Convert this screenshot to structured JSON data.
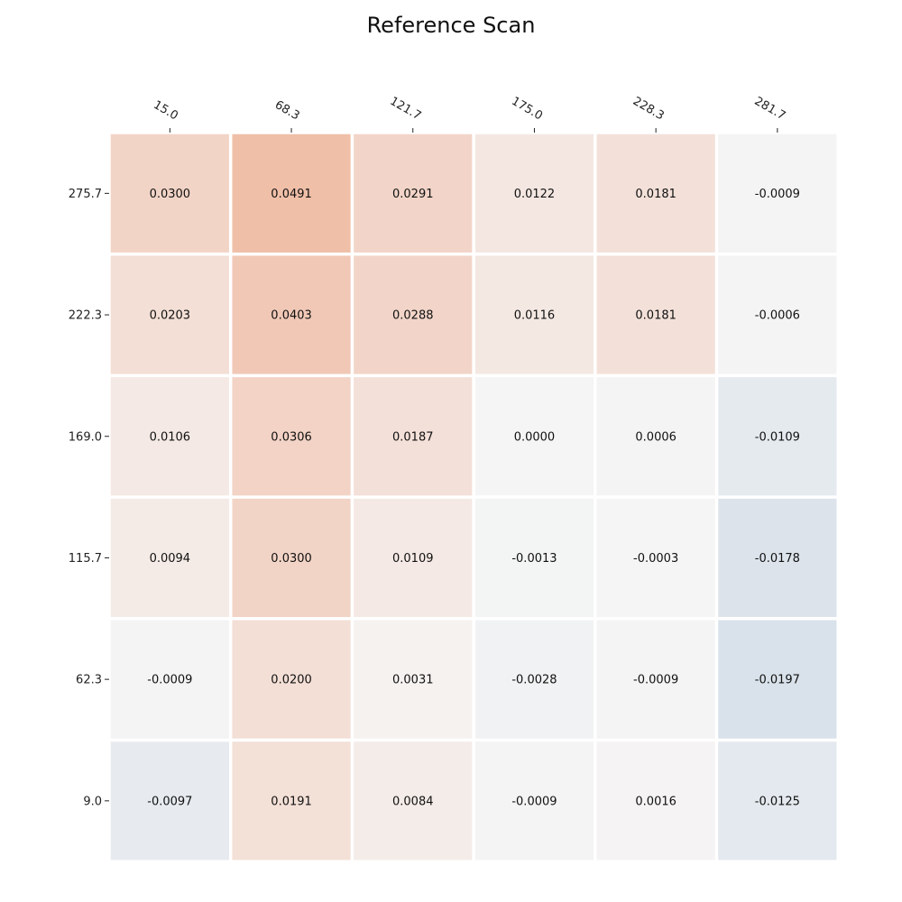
{
  "chart_data": {
    "type": "heatmap",
    "title": "Reference Scan",
    "xlabel": "",
    "ylabel": "",
    "x": [
      "15.0",
      "68.3",
      "121.7",
      "175.0",
      "228.3",
      "281.7"
    ],
    "y": [
      "275.7",
      "222.3",
      "169.0",
      "115.7",
      "62.3",
      "9.0"
    ],
    "x_axis_position": "top",
    "grid": false,
    "colormap": {
      "negative": "#4a7fb0",
      "neutral": "#f5f5f5",
      "positive": "#e8703a",
      "vmin": -0.12,
      "vmax": 0.12
    },
    "values": [
      [
        0.03,
        0.0491,
        0.0291,
        0.0122,
        0.0181,
        -0.0009
      ],
      [
        0.0203,
        0.0403,
        0.0288,
        0.0116,
        0.0181,
        -0.0006
      ],
      [
        0.0106,
        0.0306,
        0.0187,
        0.0,
        0.0006,
        -0.0109
      ],
      [
        0.0094,
        0.03,
        0.0109,
        -0.0013,
        -0.0003,
        -0.0178
      ],
      [
        -0.0009,
        0.02,
        0.0031,
        -0.0028,
        -0.0009,
        -0.0197
      ],
      [
        -0.0097,
        0.0191,
        0.0084,
        -0.0009,
        0.0016,
        -0.0125
      ]
    ],
    "cell_labels": [
      [
        "0.0300",
        "0.0491",
        "0.0291",
        "0.0122",
        "0.0181",
        "-0.0009"
      ],
      [
        "0.0203",
        "0.0403",
        "0.0288",
        "0.0116",
        "0.0181",
        "-0.0006"
      ],
      [
        "0.0106",
        "0.0306",
        "0.0187",
        "0.0000",
        "0.0006",
        "-0.0109"
      ],
      [
        "0.0094",
        "0.0300",
        "0.0109",
        "-0.0013",
        "-0.0003",
        "-0.0178"
      ],
      [
        "-0.0009",
        "0.0200",
        "0.0031",
        "-0.0028",
        "-0.0009",
        "-0.0197"
      ],
      [
        "-0.0097",
        "0.0191",
        "0.0084",
        "-0.0009",
        "0.0016",
        "-0.0125"
      ]
    ]
  }
}
